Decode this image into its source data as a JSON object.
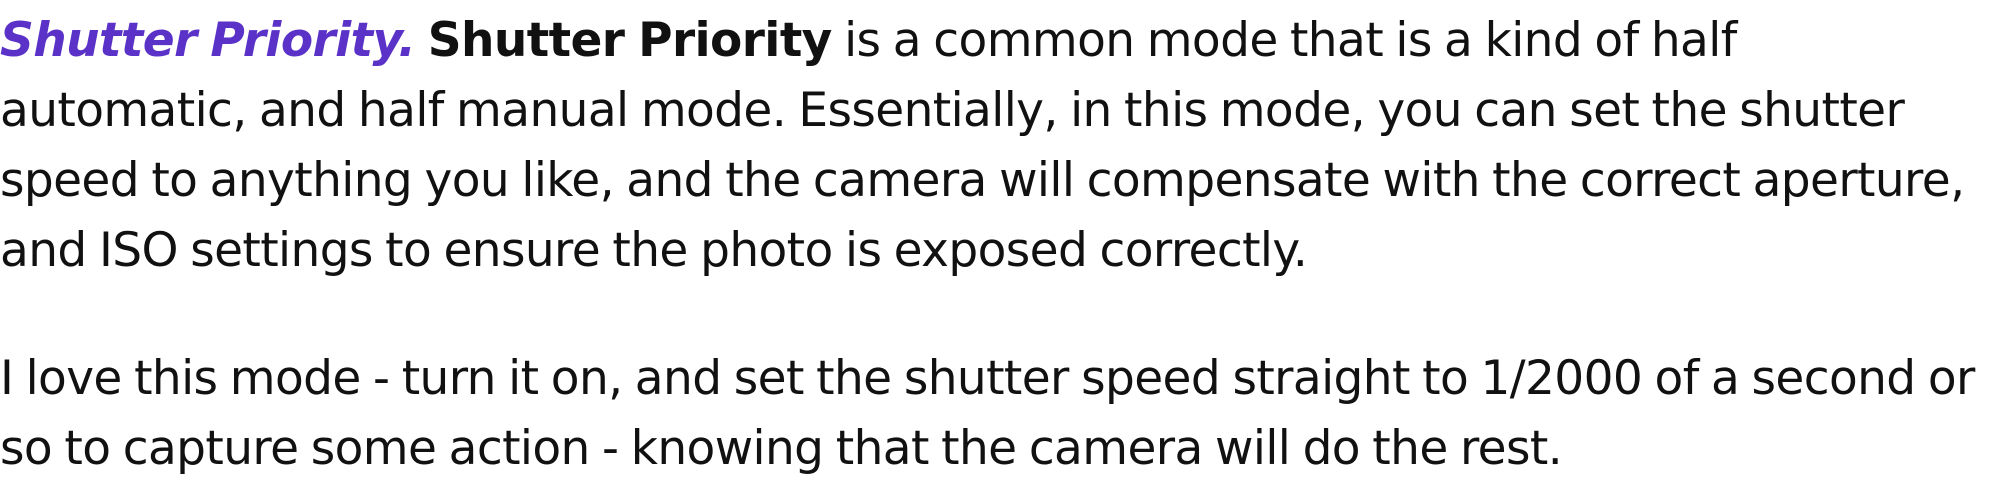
{
  "article": {
    "paragraphs": [
      {
        "heading_link": "Shutter Priority.",
        "term": "Shutter Priority",
        "body": " is a common mode that is a kind of half automatic, and half manual mode. Essentially, in this mode, you can set the shutter speed to anything you like, and the camera will compensate with the correct aperture, and ISO settings to ensure the photo is exposed correctly."
      },
      {
        "body": "I love this mode - turn it on, and set the shutter speed straight to 1/2000 of a second or so to capture some action - knowing that the camera will do the rest."
      }
    ]
  },
  "colors": {
    "heading_link": "#5b32c8",
    "text": "#111111",
    "background": "#ffffff"
  }
}
